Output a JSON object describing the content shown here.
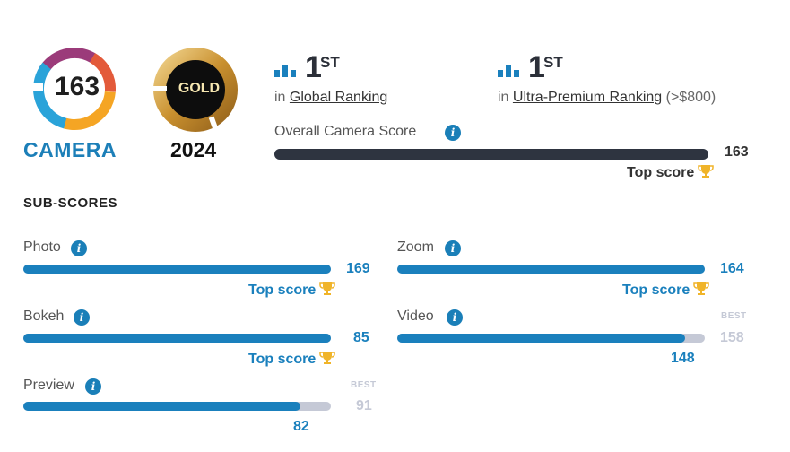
{
  "badge": {
    "score": "163",
    "label": "CAMERA"
  },
  "award": {
    "label": "GOLD",
    "year": "2024"
  },
  "rankings": [
    {
      "position": "1",
      "suffix": "ST",
      "prefix": "in",
      "name": "Global Ranking",
      "extra": ""
    },
    {
      "position": "1",
      "suffix": "ST",
      "prefix": "in",
      "name": "Ultra-Premium Ranking",
      "extra": "(>$800)"
    }
  ],
  "overall": {
    "label": "Overall Camera Score",
    "score": "163",
    "max": 163,
    "value": 163,
    "top_label": "Top score"
  },
  "sub_scores_title": "SUB-SCORES",
  "sub_scores": {
    "photo": {
      "label": "Photo",
      "score": "169",
      "value": 169,
      "max": 169,
      "top_label": "Top score"
    },
    "zoom": {
      "label": "Zoom",
      "score": "164",
      "value": 164,
      "max": 164,
      "top_label": "Top score"
    },
    "bokeh": {
      "label": "Bokeh",
      "score": "85",
      "value": 85,
      "max": 85,
      "top_label": "Top score"
    },
    "video": {
      "label": "Video",
      "score": "148",
      "value": 148,
      "max": 158,
      "best_label": "BEST",
      "best": "158"
    },
    "preview": {
      "label": "Preview",
      "score": "82",
      "value": 82,
      "max": 91,
      "best_label": "BEST",
      "best": "91"
    }
  },
  "icons": {
    "info": "info-icon",
    "trophy": "trophy-icon",
    "ranking": "bar-chart-icon"
  },
  "colors": {
    "accent": "#1a80bd",
    "track": "#c5c9d6",
    "overall_bar": "#2e3440",
    "trophy": "#f0b429"
  }
}
